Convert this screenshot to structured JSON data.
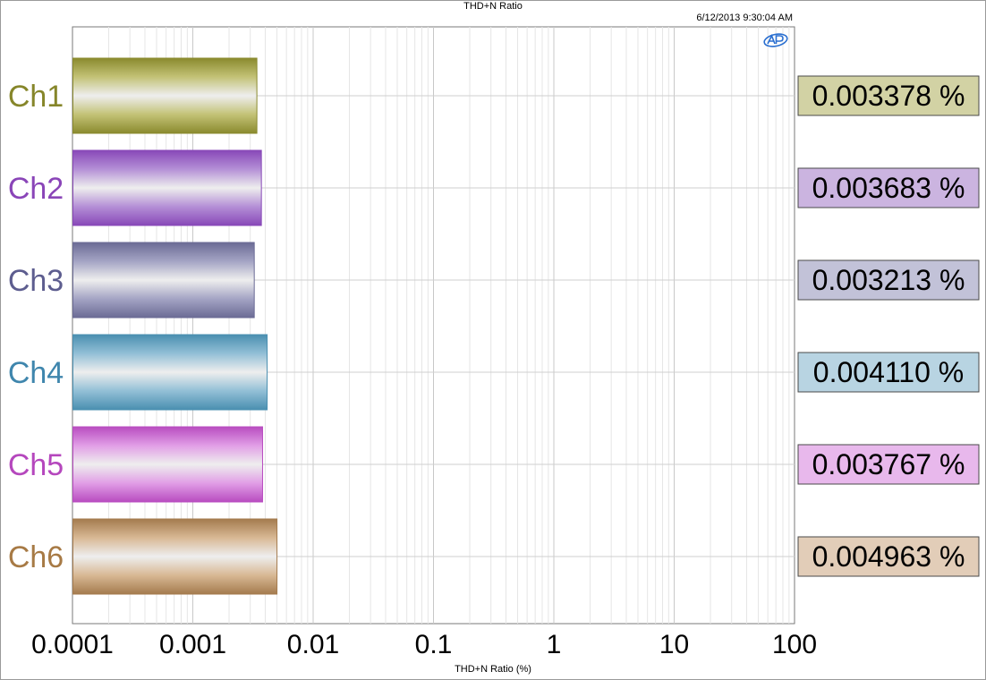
{
  "chart_title": "THD+N Ratio",
  "timestamp": "6/12/2013 9:30:04 AM",
  "logo_icon": "audio-precision-logo-icon",
  "chart_data": {
    "type": "bar",
    "orientation": "horizontal",
    "title": "THD+N Ratio",
    "xlabel": "THD+N Ratio (%)",
    "ylabel": "",
    "x_scale": "log",
    "xlim": [
      0.0001,
      100
    ],
    "grid": true,
    "x_ticks": [
      "0.0001",
      "0.001",
      "0.01",
      "0.1",
      "1",
      "10",
      "100"
    ],
    "categories": [
      "Ch1",
      "Ch2",
      "Ch3",
      "Ch4",
      "Ch5",
      "Ch6"
    ],
    "values": [
      0.003378,
      0.003683,
      0.003213,
      0.00411,
      0.003767,
      0.004963
    ],
    "value_labels": [
      "0.003378 %",
      "0.003683 %",
      "0.003213 %",
      "0.004110 %",
      "0.003767 %",
      "0.004963 %"
    ],
    "colors": {
      "bar_fill": [
        "#c3c276",
        "#b48fd6",
        "#a4a4c4",
        "#92bfd6",
        "#e19ee6",
        "#d8b894"
      ],
      "bar_edge": [
        "#8a8a2e",
        "#8848b8",
        "#6b6b95",
        "#4a8fb0",
        "#b84cc0",
        "#a47b4e"
      ],
      "label_text": [
        "#86862a",
        "#8a45b8",
        "#5d5d8f",
        "#3f86ad",
        "#b547bd",
        "#a77a45"
      ],
      "value_box": [
        "#d2d2a4",
        "#cbb4e0",
        "#c2c2d8",
        "#b8d4e2",
        "#e8b8ec",
        "#e2cdb8"
      ]
    }
  }
}
